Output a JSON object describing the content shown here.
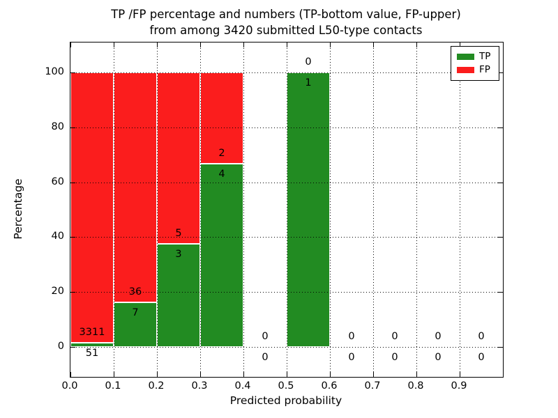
{
  "title": {
    "line1": "TP /FP percentage and numbers (TP-bottom value, FP-upper)",
    "line2": "from among 3420 submitted L50-type contacts"
  },
  "axes": {
    "ylabel": "Percentage",
    "xlabel": "Predicted probability",
    "yticks": [
      0,
      20,
      40,
      60,
      80,
      100
    ],
    "xticks": [
      "0.0",
      "0.1",
      "0.2",
      "0.3",
      "0.4",
      "0.5",
      "0.6",
      "0.7",
      "0.8",
      "0.9"
    ],
    "ylim": [
      -11,
      111
    ],
    "xlim": [
      0,
      1.0
    ],
    "grid": "dotted, drawn above bars"
  },
  "legend": {
    "position": "upper right",
    "items": [
      {
        "label": "TP",
        "color": "#228b22"
      },
      {
        "label": "FP",
        "color": "#fb1d1d"
      }
    ]
  },
  "chart_data": {
    "type": "bar",
    "stacked": true,
    "title": "TP /FP percentage and numbers (TP-bottom value, FP-upper) from among 3420 submitted L50-type contacts",
    "xlabel": "Predicted probability",
    "ylabel": "Percentage",
    "total_contacts": 3420,
    "bin_width": 0.1,
    "bins": [
      {
        "range": [
          0.0,
          0.1
        ],
        "tp": 51,
        "fp": 3311
      },
      {
        "range": [
          0.1,
          0.2
        ],
        "tp": 7,
        "fp": 36
      },
      {
        "range": [
          0.2,
          0.3
        ],
        "tp": 3,
        "fp": 5
      },
      {
        "range": [
          0.3,
          0.4
        ],
        "tp": 4,
        "fp": 2
      },
      {
        "range": [
          0.4,
          0.5
        ],
        "tp": 0,
        "fp": 0
      },
      {
        "range": [
          0.5,
          0.6
        ],
        "tp": 1,
        "fp": 0
      },
      {
        "range": [
          0.6,
          0.7
        ],
        "tp": 0,
        "fp": 0
      },
      {
        "range": [
          0.7,
          0.8
        ],
        "tp": 0,
        "fp": 0
      },
      {
        "range": [
          0.8,
          0.9
        ],
        "tp": 0,
        "fp": 0
      },
      {
        "range": [
          0.9,
          1.0
        ],
        "tp": 0,
        "fp": 0
      }
    ],
    "series": [
      {
        "name": "TP",
        "values_pct": [
          1.52,
          16.28,
          37.5,
          66.67,
          0,
          100,
          0,
          0,
          0,
          0
        ]
      },
      {
        "name": "FP",
        "values_pct": [
          98.48,
          83.72,
          62.5,
          33.33,
          0,
          0,
          0,
          0,
          0,
          0
        ]
      }
    ]
  }
}
